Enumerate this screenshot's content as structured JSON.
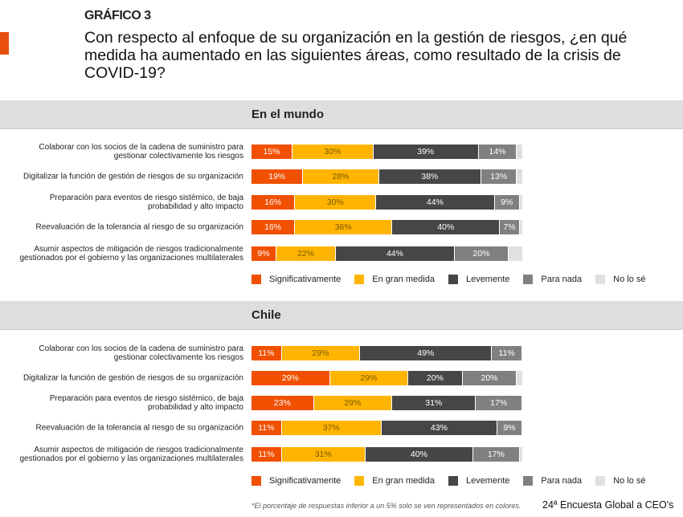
{
  "header": {
    "kicker": "GRÁFICO 3",
    "title": "Con respecto al enfoque de su organización en la gestión de riesgos, ¿en qué medida ha aumentado en las siguientes áreas, como resultado de la crisis de COVID-19?"
  },
  "colors": {
    "accent": "#e8500e",
    "Significativamente": "#f05000",
    "En gran medida": "#ffb400",
    "Levemente": "#464646",
    "Para nada": "#808080",
    "No lo sé": "#e0e0e0"
  },
  "legend": [
    "Significativamente",
    "En gran medida",
    "Levemente",
    "Para nada",
    "No lo sé"
  ],
  "chart_data": [
    {
      "type": "bar",
      "orientation": "horizontal",
      "stacked": true,
      "title": "En el mundo",
      "unit": "%",
      "categories": [
        "Colaborar con los socios de la cadena de suministro para gestionar colectivamente los riesgos",
        "Digitalizar la función de gestión de riesgos de su organización",
        "Preparación para eventos de riesgo sistémico, de baja probabilidad y alto impacto",
        "Reevaluación de la tolerancia al riesgo de su organización",
        "Asumir aspectos de mitigación de riesgos tradicionalmente gestionados por el gobierno y las organizaciones multilaterales"
      ],
      "series": [
        {
          "name": "Significativamente",
          "values": [
            15,
            19,
            16,
            16,
            9
          ]
        },
        {
          "name": "En gran medida",
          "values": [
            30,
            28,
            30,
            36,
            22
          ]
        },
        {
          "name": "Levemente",
          "values": [
            39,
            38,
            44,
            40,
            44
          ]
        },
        {
          "name": "Para nada",
          "values": [
            14,
            13,
            9,
            7,
            20
          ]
        },
        {
          "name": "No lo sé",
          "values": [
            2,
            2,
            1,
            1,
            5
          ],
          "labeled": false
        }
      ],
      "legend_position": "bottom"
    },
    {
      "type": "bar",
      "orientation": "horizontal",
      "stacked": true,
      "title": "Chile",
      "unit": "%",
      "categories": [
        "Colaborar con los socios de la cadena de suministro para gestionar colectivamente los riesgos",
        "Digitalizar la función de gestión de riesgos de su organización",
        "Preparación para eventos de riesgo sistémico, de baja probabilidad y alto impacto",
        "Reevaluación de la tolerancia al riesgo de su organización",
        "Asumir aspectos de mitigación de riesgos tradicionalmente gestionados por el gobierno y las organizaciones multilaterales"
      ],
      "series": [
        {
          "name": "Significativamente",
          "values": [
            11,
            29,
            23,
            11,
            11
          ]
        },
        {
          "name": "En gran medida",
          "values": [
            29,
            29,
            29,
            37,
            31
          ]
        },
        {
          "name": "Levemente",
          "values": [
            49,
            20,
            31,
            43,
            40
          ]
        },
        {
          "name": "Para nada",
          "values": [
            11,
            20,
            17,
            9,
            17
          ]
        },
        {
          "name": "No lo sé",
          "values": [
            0,
            2,
            0,
            0,
            1
          ],
          "labeled": false
        }
      ],
      "legend_position": "bottom"
    }
  ],
  "footer": {
    "note": "*El porcentaje de respuestas inferior a un 5% solo se ven representados en colores.",
    "source": "24ª Encuesta Global a CEO's"
  }
}
